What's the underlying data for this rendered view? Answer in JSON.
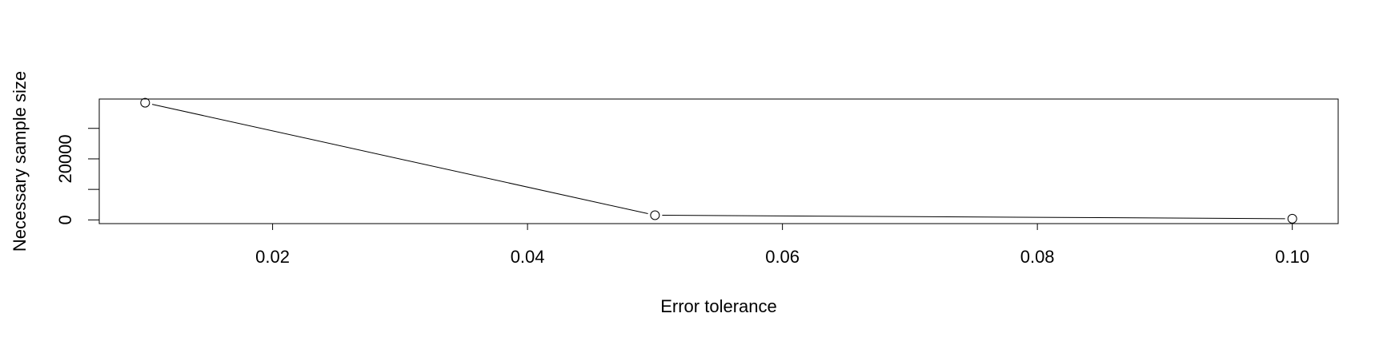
{
  "chart_data": {
    "type": "line",
    "xlabel": "Error tolerance",
    "ylabel": "Necessary sample size",
    "x": [
      0.01,
      0.05,
      0.1
    ],
    "y": [
      38400,
      1537,
      385
    ],
    "xticks": [
      "0.02",
      "0.04",
      "0.06",
      "0.08",
      "0.10"
    ],
    "xtick_values": [
      0.02,
      0.04,
      0.06,
      0.08,
      0.1
    ],
    "yticks": [
      "0",
      "20000"
    ],
    "ytick_values": [
      0,
      20000
    ],
    "yminor_ticks": [
      10000,
      30000
    ],
    "xlim": [
      0.0064,
      0.1036
    ],
    "ylim": [
      -1216,
      39616
    ],
    "grid": false,
    "marker": "open-circle",
    "line_color": "#000000"
  }
}
